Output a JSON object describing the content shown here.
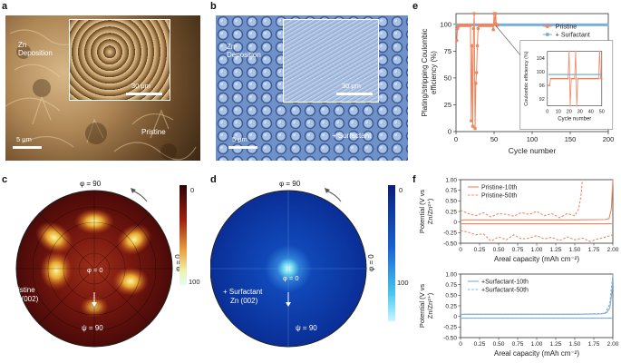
{
  "panels": {
    "a": "a",
    "b": "b",
    "c": "c",
    "d": "d",
    "e": "e",
    "f": "f"
  },
  "sem_a": {
    "region_label_l1": "Zn",
    "region_label_l2": "Deposition",
    "scale_main": "5 μm",
    "scale_inset": "30 μm",
    "tag": "Pristine"
  },
  "sem_b": {
    "region_label_l1": "Zn",
    "region_label_l2": "Deposition",
    "scale_main": "5 μm",
    "scale_inset": "30 μm",
    "tag": "+ Surfactant"
  },
  "pole_c": {
    "phi_top": "φ = 90",
    "phi_right": "φ = 0",
    "phi_center": "φ = 0",
    "psi_bottom": "ψ = 90",
    "sample_l1": "Pristine",
    "sample_l2": "Zn (002)",
    "scale_ticks": [
      "0",
      "100"
    ]
  },
  "pole_d": {
    "phi_top": "φ = 90",
    "phi_right": "φ = 0",
    "phi_center": "φ = 0",
    "psi_bottom": "ψ = 90",
    "sample_l1": "+ Surfactant",
    "sample_l2": "Zn (002)",
    "scale_ticks": [
      "0",
      "100"
    ]
  },
  "colors": {
    "pristine": "#f0865f",
    "surfactant": "#7aaed8",
    "sem_a": "#b89362",
    "sem_b": "#7294c8"
  },
  "chart_data": [
    {
      "type": "scatter",
      "title": "",
      "xlabel": "Cycle number",
      "ylabel": "Plating/stripping Coulombic efficiency (%)",
      "xlim": [
        0,
        200
      ],
      "ylim": [
        0,
        110
      ],
      "xticks": [
        "0",
        "50",
        "100",
        "150",
        "200"
      ],
      "yticks": [
        "0",
        "25",
        "50",
        "75",
        "100"
      ],
      "series": [
        {
          "name": "Pristine",
          "x": [
            1,
            2,
            3,
            4,
            5,
            6,
            7,
            8,
            9,
            10,
            11,
            12,
            13,
            14,
            15,
            16,
            17,
            18,
            19,
            20,
            21,
            22,
            23,
            24,
            25,
            26,
            27,
            28,
            29,
            30,
            31,
            32,
            33,
            34,
            35,
            36,
            37,
            38,
            39,
            40,
            41,
            42,
            43,
            44,
            45,
            46,
            47,
            48,
            49,
            50,
            51,
            52,
            53,
            54
          ],
          "values": [
            85,
            96,
            98,
            99,
            99,
            99,
            99,
            99,
            99,
            99,
            99,
            99,
            99,
            99,
            99,
            99,
            99,
            99,
            99,
            10,
            80,
            5,
            96,
            110,
            3,
            45,
            55,
            80,
            96,
            99,
            99,
            99,
            99,
            99,
            99,
            99,
            99,
            99,
            99,
            99,
            99,
            99,
            99,
            99,
            99,
            99,
            99,
            99,
            95,
            110,
            101,
            110,
            100,
            99
          ]
        },
        {
          "name": "+ Surfactant",
          "x_start": 1,
          "x_end": 200,
          "value": 99.6
        }
      ],
      "legend": [
        "Pristine",
        "+ Surfactant"
      ],
      "inset": {
        "xlabel": "Cycle number",
        "ylabel": "Coulombic efficiency (%)",
        "xticks": [
          "0",
          "10",
          "20",
          "30",
          "40",
          "50"
        ],
        "yticks": [
          "92",
          "96",
          "100",
          "104"
        ]
      }
    },
    {
      "type": "line",
      "xlabel": "Areal capacity (mAh cm⁻²)",
      "ylabel": "Potential (V vs Zn/Zn²⁺)",
      "xlim": [
        0,
        2.0
      ],
      "ylim": [
        -0.5,
        1.0
      ],
      "xticks": [
        "0",
        "0.25",
        "0.50",
        "0.75",
        "1.00",
        "1.25",
        "1.50",
        "1.75",
        "2.00"
      ],
      "yticks": [
        "1.00",
        "0.75",
        "0.50",
        "0.25",
        "0",
        "-0.25",
        "-0.50"
      ],
      "series": [
        {
          "name": "Pristine-10th",
          "style": "solid",
          "x": [
            0,
            0.05,
            0.5,
            1.0,
            1.5,
            1.9,
            1.95,
            1.98,
            2.0
          ],
          "values": [
            0.04,
            0.05,
            0.05,
            0.05,
            0.05,
            0.06,
            0.08,
            0.3,
            1.0
          ]
        },
        {
          "name": "Pristine-50th",
          "style": "dashed",
          "x": [
            0,
            0.1,
            0.2,
            0.3,
            0.4,
            0.5,
            0.6,
            0.7,
            0.8,
            0.9,
            1.0,
            1.1,
            1.2,
            1.3,
            1.4,
            1.5,
            1.55,
            1.58,
            1.6
          ],
          "values": [
            0.28,
            0.2,
            0.15,
            0.22,
            0.12,
            0.2,
            0.18,
            0.14,
            0.22,
            0.18,
            0.25,
            0.15,
            0.2,
            0.1,
            0.2,
            0.15,
            0.3,
            0.6,
            1.0
          ]
        },
        {
          "name": "Pristine-10th strip",
          "style": "solid",
          "x": [
            0,
            2.0
          ],
          "values": [
            -0.04,
            -0.04
          ]
        },
        {
          "name": "Pristine-50th strip",
          "style": "dashed",
          "x": [
            0,
            0.1,
            0.2,
            0.3,
            0.4,
            0.5,
            0.6,
            0.7,
            0.8,
            0.9,
            1.0,
            1.1,
            1.2,
            1.3,
            1.4,
            1.5,
            1.6,
            1.7,
            1.8,
            1.9,
            2.0
          ],
          "values": [
            -0.2,
            -0.24,
            -0.3,
            -0.28,
            -0.45,
            -0.35,
            -0.42,
            -0.3,
            -0.4,
            -0.38,
            -0.32,
            -0.4,
            -0.36,
            -0.44,
            -0.35,
            -0.42,
            -0.38,
            -0.46,
            -0.4,
            -0.36,
            -0.3
          ]
        }
      ],
      "legend": [
        "Pristine-10th",
        "Pristine-50th"
      ]
    },
    {
      "type": "line",
      "xlabel": "Areal capacity (mAh cm⁻²)",
      "ylabel": "Potential (V vs Zn/Zn²⁺)",
      "xlim": [
        0,
        2.0
      ],
      "ylim": [
        -0.5,
        1.0
      ],
      "xticks": [
        "0",
        "0.25",
        "0.50",
        "0.75",
        "1.00",
        "1.25",
        "1.50",
        "1.75",
        "2.00"
      ],
      "yticks": [
        "1.00",
        "0.75",
        "0.50",
        "0.25",
        "0",
        "-0.25",
        "-0.50"
      ],
      "series": [
        {
          "name": "+Surfactant-10th",
          "style": "solid",
          "x": [
            0,
            0.05,
            0.5,
            1.0,
            1.5,
            1.85,
            1.92,
            1.96,
            1.99,
            2.0
          ],
          "values": [
            0.04,
            0.05,
            0.05,
            0.05,
            0.05,
            0.06,
            0.09,
            0.2,
            0.6,
            1.0
          ]
        },
        {
          "name": "+Surfactant-50th",
          "style": "dashed",
          "x": [
            0,
            0.5,
            1.0,
            1.5,
            1.9,
            1.96,
            2.0
          ],
          "values": [
            0.05,
            0.05,
            0.05,
            0.05,
            0.07,
            0.3,
            1.0
          ]
        },
        {
          "name": "+Surfactant strip",
          "style": "solid",
          "x": [
            0,
            2.0
          ],
          "values": [
            -0.04,
            -0.04
          ]
        }
      ],
      "legend": [
        "+Surfactant-10th",
        "+Surfactant-50th"
      ]
    }
  ]
}
